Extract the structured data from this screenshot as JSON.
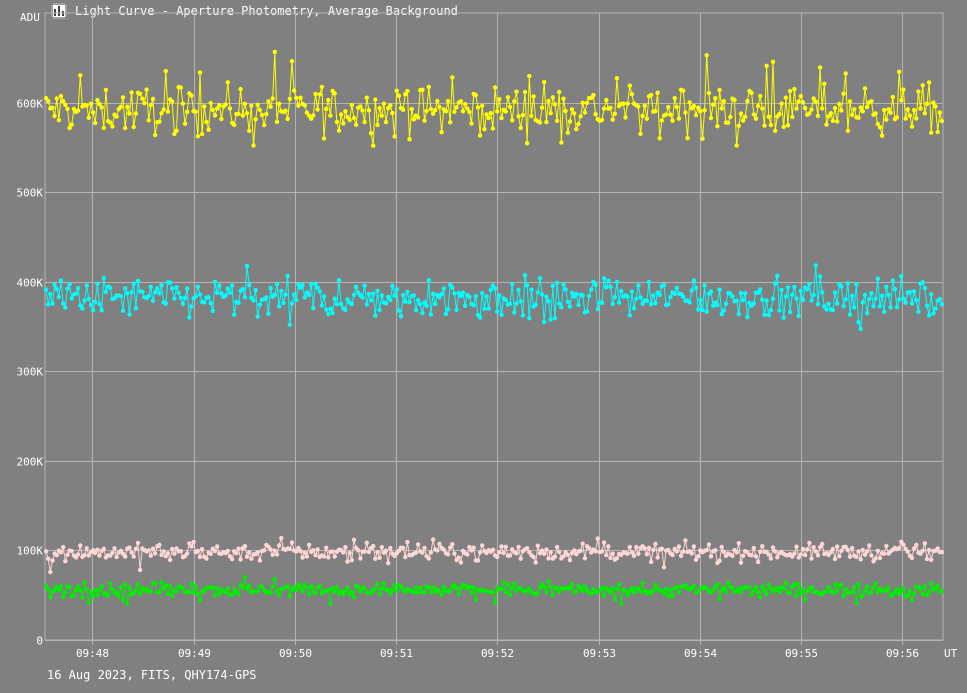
{
  "window": {
    "title": "Light Curve - Aperture Photometry, Average Background",
    "icon": "chart-app-icon"
  },
  "footer": {
    "caption": "16 Aug 2023, FITS, QHY174-GPS"
  },
  "colors": {
    "background": "#808080",
    "grid": "#b4b4b4",
    "text": "#ffffff"
  },
  "chart_data": {
    "type": "line",
    "title": "",
    "xlabel": "UT",
    "ylabel": "ADU",
    "xlim": [
      "09:47:32",
      "09:56:24"
    ],
    "ylim": [
      0,
      700000
    ],
    "grid": true,
    "x_ticks": [
      "09:48",
      "09:49",
      "09:50",
      "09:51",
      "09:52",
      "09:53",
      "09:54",
      "09:55",
      "09:56"
    ],
    "y_ticks": [
      {
        "value": 0,
        "label": "0"
      },
      {
        "value": 100000,
        "label": "100K"
      },
      {
        "value": 200000,
        "label": "200K"
      },
      {
        "value": 300000,
        "label": "300K"
      },
      {
        "value": 400000,
        "label": "400K"
      },
      {
        "value": 500000,
        "label": "500K"
      },
      {
        "value": 600000,
        "label": "600K"
      }
    ],
    "series": [
      {
        "color": "#ffff00",
        "mean": 592000,
        "jitter": 28000,
        "points": 420
      },
      {
        "color": "#00ffff",
        "mean": 382000,
        "jitter": 24000,
        "points": 420
      },
      {
        "color": "#ffd6d6",
        "mean": 98000,
        "jitter": 10000,
        "points": 420
      },
      {
        "color": "#00ee00",
        "mean": 56000,
        "jitter": 8000,
        "points": 420
      }
    ]
  }
}
